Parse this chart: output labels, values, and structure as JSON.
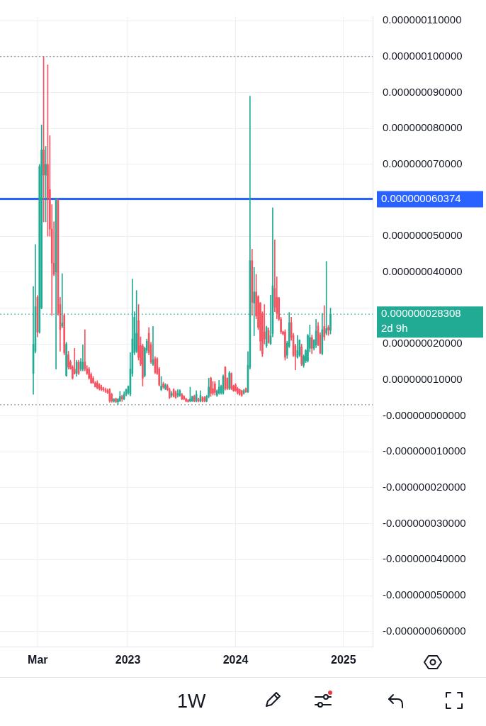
{
  "chart_data": {
    "type": "candlestick",
    "x": [
      "2022-02-14",
      "2022-02-21",
      "2022-02-28",
      "2022-03-07",
      "2022-03-14",
      "2022-03-21",
      "2022-03-28",
      "2022-04-04",
      "2022-04-11",
      "2022-04-18",
      "2022-04-25",
      "2022-05-02",
      "2022-05-09",
      "2022-05-16",
      "2022-05-23",
      "2022-05-30",
      "2022-06-06",
      "2022-06-13",
      "2022-06-20",
      "2022-06-27",
      "2022-07-04",
      "2022-07-11",
      "2022-07-18",
      "2022-07-25",
      "2022-08-01",
      "2022-08-08",
      "2022-08-15",
      "2022-08-22",
      "2022-08-29",
      "2022-09-05",
      "2022-09-12",
      "2022-09-19",
      "2022-09-26",
      "2022-10-03",
      "2022-10-10",
      "2022-10-17",
      "2022-10-24",
      "2022-10-31",
      "2022-11-07",
      "2022-11-14",
      "2022-11-21",
      "2022-11-28",
      "2022-12-05",
      "2022-12-12",
      "2022-12-19",
      "2022-12-26",
      "2023-01-02",
      "2023-01-09",
      "2023-01-16",
      "2023-01-23",
      "2023-01-30",
      "2023-02-06",
      "2023-02-13",
      "2023-02-20",
      "2023-02-27",
      "2023-03-06",
      "2023-03-13",
      "2023-03-20",
      "2023-03-27",
      "2023-04-03",
      "2023-04-10",
      "2023-04-17",
      "2023-04-24",
      "2023-05-01",
      "2023-05-08",
      "2023-05-15",
      "2023-05-22",
      "2023-05-29",
      "2023-06-05",
      "2023-06-12",
      "2023-06-19",
      "2023-06-26",
      "2023-07-03",
      "2023-07-10",
      "2023-07-17",
      "2023-07-24",
      "2023-07-31",
      "2023-08-07",
      "2023-08-14",
      "2023-08-21",
      "2023-08-28",
      "2023-09-04",
      "2023-09-11",
      "2023-09-18",
      "2023-09-25",
      "2023-10-02",
      "2023-10-09",
      "2023-10-16",
      "2023-10-23",
      "2023-10-30",
      "2023-11-06",
      "2023-11-13",
      "2023-11-20",
      "2023-11-27",
      "2023-12-04",
      "2023-12-11",
      "2023-12-18",
      "2023-12-25",
      "2024-01-01",
      "2024-01-08",
      "2024-01-15",
      "2024-01-22",
      "2024-01-29",
      "2024-02-05",
      "2024-02-12",
      "2024-02-19",
      "2024-02-26",
      "2024-03-04",
      "2024-03-11",
      "2024-03-18",
      "2024-03-25",
      "2024-04-01",
      "2024-04-08",
      "2024-04-15",
      "2024-04-22",
      "2024-04-29",
      "2024-05-06",
      "2024-05-13",
      "2024-05-20",
      "2024-05-27",
      "2024-06-03",
      "2024-06-10",
      "2024-06-17",
      "2024-06-24",
      "2024-07-01",
      "2024-07-08",
      "2024-07-15",
      "2024-07-22",
      "2024-07-29",
      "2024-08-05",
      "2024-08-12",
      "2024-08-19",
      "2024-08-26",
      "2024-09-02",
      "2024-09-09",
      "2024-09-16",
      "2024-09-23",
      "2024-09-30",
      "2024-10-07",
      "2024-10-14",
      "2024-10-21",
      "2024-10-28",
      "2024-11-04",
      "2024-11-11",
      "2024-11-18"
    ],
    "ohlc": [
      [
        1.18e-08,
        3.6e-08,
        6e-09,
        2e-08
      ],
      [
        1.8e-08,
        4.77e-08,
        1.75e-08,
        3.04e-08
      ],
      [
        3.3e-08,
        3.35e-08,
        2.2e-08,
        2.33e-08
      ],
      [
        2.33e-08,
        7e-08,
        2.3e-08,
        6.94e-08
      ],
      [
        3e-08,
        8.1e-08,
        2.98e-08,
        7.4e-08
      ],
      [
        7.4e-08,
        1e-07,
        5.4e-08,
        6.7e-08
      ],
      [
        6.7e-08,
        7.5e-08,
        5.4e-08,
        7e-08
      ],
      [
        7e-08,
        9.77e-08,
        5e-08,
        6.06e-08
      ],
      [
        6.3e-08,
        7.8e-08,
        5e-08,
        5.2e-08
      ],
      [
        5.2e-08,
        5.88e-08,
        2.8e-08,
        4.25e-08
      ],
      [
        4.25e-08,
        5.4e-08,
        3.9e-08,
        3.94e-08
      ],
      [
        4e-08,
        6.06e-08,
        1.3e-08,
        6.04e-08
      ],
      [
        6e-08,
        6.04e-08,
        2.8e-08,
        2.85e-08
      ],
      [
        3.1e-08,
        3.3e-08,
        1.8e-08,
        2.4e-08
      ],
      [
        2.5e-08,
        3.96e-08,
        2.45e-08,
        2.58e-08
      ],
      [
        2.8e-08,
        2.85e-08,
        1.7e-08,
        1.75e-08
      ],
      [
        1.12e-08,
        2.05e-08,
        1.1e-08,
        2e-08
      ],
      [
        1.7e-08,
        1.8e-08,
        1.3e-08,
        1.36e-08
      ],
      [
        1.5e-08,
        1.55e-08,
        1.3e-08,
        1.31e-08
      ],
      [
        1.36e-08,
        1.4e-08,
        1.02e-08,
        1.05e-08
      ],
      [
        1.3e-08,
        1.88e-08,
        1.16e-08,
        1.18e-08
      ],
      [
        1.18e-08,
        1.55e-08,
        1.1e-08,
        1.5e-08
      ],
      [
        1.5e-08,
        1.55e-08,
        1.15e-08,
        1.18e-08
      ],
      [
        1.3e-08,
        1.6e-08,
        1.25e-08,
        1.5e-08
      ],
      [
        1.3e-08,
        1.98e-08,
        1.25e-08,
        1.5e-08
      ],
      [
        1.5e-08,
        2.4e-08,
        1.25e-08,
        1.31e-08
      ],
      [
        1.31e-08,
        1.4e-08,
        1.15e-08,
        1.18e-08
      ],
      [
        1.3e-08,
        1.35e-08,
        1.02e-08,
        1.05e-08
      ],
      [
        1.15e-08,
        1.2e-08,
        9e-09,
        9.2e-09
      ],
      [
        1.05e-08,
        1.1e-08,
        9e-09,
        9.2e-09
      ],
      [
        9.2e-09,
        9.6e-09,
        8e-09,
        8.1e-09
      ],
      [
        9.2e-09,
        9.8e-09,
        7.5e-09,
        7.8e-09
      ],
      [
        8.6e-09,
        9e-09,
        7.2e-09,
        7.6e-09
      ],
      [
        8e-09,
        8.6e-09,
        7e-09,
        7.3e-09
      ],
      [
        7.6e-09,
        8e-09,
        6.8e-09,
        7.3e-09
      ],
      [
        7.3e-09,
        7.8e-09,
        6.5e-09,
        6.8e-09
      ],
      [
        7e-09,
        7.5e-09,
        6.2e-09,
        6.4e-09
      ],
      [
        7.3e-09,
        7.6e-09,
        3.8e-09,
        4.1e-09
      ],
      [
        6e-09,
        6.3e-09,
        3.8e-09,
        4.1e-09
      ],
      [
        4.1e-09,
        4.8e-09,
        3.8e-09,
        4.7e-09
      ],
      [
        4.7e-09,
        5e-09,
        3.7e-09,
        3.9e-09
      ],
      [
        3.9e-09,
        4.8e-09,
        3.1e-09,
        4.7e-09
      ],
      [
        4.1e-09,
        6.8e-09,
        4e-09,
        5.4e-09
      ],
      [
        5.4e-09,
        5.8e-09,
        4e-09,
        4.7e-09
      ],
      [
        4.7e-09,
        6.7e-09,
        4.5e-09,
        6e-09
      ],
      [
        6e-09,
        7.5e-09,
        5.5e-09,
        7.3e-09
      ],
      [
        6.5e-09,
        8.4e-09,
        6e-09,
        8.2e-09
      ],
      [
        6e-09,
        1.76e-08,
        5.5e-09,
        1.31e-08
      ],
      [
        1.18e-08,
        3.81e-08,
        1.1e-08,
        2.14e-08
      ],
      [
        1.76e-08,
        2.9e-08,
        1.7e-08,
        2.75e-08
      ],
      [
        1.8e-08,
        3.49e-08,
        1.76e-08,
        2.3e-08
      ],
      [
        2.65e-08,
        3.1e-08,
        1.55e-08,
        1.63e-08
      ],
      [
        1.95e-08,
        2.2e-08,
        1.4e-08,
        1.44e-08
      ],
      [
        1.95e-08,
        2e-08,
        8.3e-09,
        1.05e-08
      ],
      [
        1.12e-08,
        1.92e-08,
        1.08e-08,
        1.88e-08
      ],
      [
        1.82e-08,
        2.14e-08,
        1.75e-08,
        2.08e-08
      ],
      [
        2.3e-08,
        2.46e-08,
        1.7e-08,
        1.76e-08
      ],
      [
        1.98e-08,
        2.05e-08,
        1.46e-08,
        1.5e-08
      ],
      [
        1.44e-08,
        2.49e-08,
        1.4e-08,
        1.56e-08
      ],
      [
        1.59e-08,
        1.65e-08,
        1.18e-08,
        1.21e-08
      ],
      [
        1.59e-08,
        1.62e-08,
        1.15e-08,
        1.18e-08
      ],
      [
        1.31e-08,
        1.35e-08,
        8.3e-09,
        8.6e-09
      ],
      [
        7.3e-09,
        1.1e-08,
        7e-09,
        8.3e-09
      ],
      [
        8.9e-09,
        9.4e-09,
        7.6e-09,
        8e-09
      ],
      [
        7.6e-09,
        9e-09,
        7.3e-09,
        8.6e-09
      ],
      [
        8.3e-09,
        8.8e-09,
        7e-09,
        7.3e-09
      ],
      [
        7.3e-09,
        7.8e-09,
        4.8e-09,
        5.1e-09
      ],
      [
        5.7e-09,
        6.8e-09,
        5.2e-09,
        6.3e-09
      ],
      [
        7.3e-09,
        7.6e-09,
        5.2e-09,
        5.4e-09
      ],
      [
        6.7e-09,
        7e-09,
        4.8e-09,
        5.1e-09
      ],
      [
        5.7e-09,
        7.3e-09,
        5.2e-09,
        6.3e-09
      ],
      [
        5.7e-09,
        7.3e-09,
        5.4e-09,
        7e-09
      ],
      [
        6e-09,
        6.3e-09,
        4.5e-09,
        4.7e-09
      ],
      [
        5.4e-09,
        5.7e-09,
        4.5e-09,
        4.7e-09
      ],
      [
        4.7e-09,
        5e-09,
        3.9e-09,
        4.1e-09
      ],
      [
        4.4e-09,
        4.6e-09,
        3.8e-09,
        4e-09
      ],
      [
        4.1e-09,
        8e-09,
        3.9e-09,
        4.7e-09
      ],
      [
        4.1e-09,
        5.5e-09,
        4e-09,
        5.4e-09
      ],
      [
        5.4e-09,
        5.8e-09,
        3.9e-09,
        4.1e-09
      ],
      [
        4.1e-09,
        7e-09,
        3.9e-09,
        6e-09
      ],
      [
        4.7e-09,
        5e-09,
        3.9e-09,
        4.1e-09
      ],
      [
        4.1e-09,
        7e-09,
        3.9e-09,
        5.7e-09
      ],
      [
        5.1e-09,
        5.4e-09,
        3.9e-09,
        4.1e-09
      ],
      [
        5.1e-09,
        5.4e-09,
        3.9e-09,
        4.1e-09
      ],
      [
        4.1e-09,
        5.7e-09,
        3.9e-09,
        5.4e-09
      ],
      [
        5.4e-09,
        1.05e-08,
        5e-09,
        8e-09
      ],
      [
        1.05e-08,
        1.08e-08,
        5.4e-09,
        6.3e-09
      ],
      [
        7.6e-09,
        9.6e-09,
        5.8e-09,
        6.3e-09
      ],
      [
        8.9e-09,
        9.6e-09,
        5.8e-09,
        6.5e-09
      ],
      [
        5.7e-09,
        7.3e-09,
        5.4e-09,
        7e-09
      ],
      [
        6.3e-09,
        9.9e-09,
        6e-09,
        8e-09
      ],
      [
        6.5e-09,
        8.6e-09,
        6e-09,
        8.3e-09
      ],
      [
        6.3e-09,
        1.14e-08,
        6e-09,
        1.1e-08
      ],
      [
        1.36e-08,
        1.37e-08,
        7.2e-09,
        7.6e-09
      ],
      [
        1.05e-08,
        1.06e-08,
        7.3e-09,
        7.6e-09
      ],
      [
        7.6e-09,
        1.24e-08,
        7.3e-09,
        1.2e-08
      ],
      [
        1.18e-08,
        1.2e-08,
        7.3e-09,
        7.6e-09
      ],
      [
        8.3e-09,
        8.6e-09,
        6.8e-09,
        7e-09
      ],
      [
        8.6e-09,
        9e-09,
        6.8e-09,
        7e-09
      ],
      [
        7.6e-09,
        8e-09,
        6e-09,
        6.3e-09
      ],
      [
        7.3e-09,
        7.5e-09,
        5.7e-09,
        6e-09
      ],
      [
        7e-09,
        7.2e-09,
        5.4e-09,
        5.7e-09
      ],
      [
        6.3e-09,
        7.4e-09,
        6e-09,
        7e-09
      ],
      [
        7.6e-09,
        7.8e-09,
        6.5e-09,
        6.7e-09
      ],
      [
        6.7e-09,
        1.79e-08,
        6.5e-09,
        1.41e-08
      ],
      [
        1.35e-08,
        8.9e-08,
        1.3e-08,
        4.32e-08
      ],
      [
        4.32e-08,
        4.64e-08,
        2.8e-08,
        3.16e-08
      ],
      [
        3.14e-08,
        4.13e-08,
        2.23e-08,
        3.45e-08
      ],
      [
        3.45e-08,
        3.94e-08,
        2.7e-08,
        2.78e-08
      ],
      [
        3.32e-08,
        3.35e-08,
        2.4e-08,
        2.46e-08
      ],
      [
        3.14e-08,
        3.16e-08,
        1.82e-08,
        2.08e-08
      ],
      [
        2.85e-08,
        2.9e-08,
        1.65e-08,
        1.73e-08
      ],
      [
        2.34e-08,
        3.1e-08,
        2e-08,
        2.14e-08
      ],
      [
        1.95e-08,
        2.5e-08,
        1.9e-08,
        2.46e-08
      ],
      [
        2.38e-08,
        2.45e-08,
        2.02e-08,
        2.04e-08
      ],
      [
        2.01e-08,
        3.36e-08,
        1.98e-08,
        2.23e-08
      ],
      [
        2.29e-08,
        5.79e-08,
        2.2e-08,
        3.62e-08
      ],
      [
        3.55e-08,
        4.9e-08,
        2.9e-08,
        3.03e-08
      ],
      [
        3.3e-08,
        3.87e-08,
        2.7e-08,
        2.85e-08
      ],
      [
        3.29e-08,
        3.3e-08,
        2.65e-08,
        2.69e-08
      ],
      [
        2.69e-08,
        2.75e-08,
        2.29e-08,
        2.34e-08
      ],
      [
        2.34e-08,
        2.36e-08,
        2.25e-08,
        2.28e-08
      ],
      [
        2.34e-08,
        2.4e-08,
        1.55e-08,
        1.63e-08
      ],
      [
        1.69e-08,
        2.08e-08,
        1.6e-08,
        2.03e-08
      ],
      [
        1.94e-08,
        2.88e-08,
        1.9e-08,
        2.59e-08
      ],
      [
        2.6e-08,
        2.75e-08,
        2.1e-08,
        2.18e-08
      ],
      [
        2.24e-08,
        2.3e-08,
        1.65e-08,
        1.69e-08
      ],
      [
        1.95e-08,
        2e-08,
        1.28e-08,
        1.66e-08
      ],
      [
        1.63e-08,
        2.24e-08,
        1.6e-08,
        1.82e-08
      ],
      [
        1.69e-08,
        2.12e-08,
        1.65e-08,
        2.11e-08
      ],
      [
        1.92e-08,
        2e-08,
        1.4e-08,
        1.44e-08
      ],
      [
        1.41e-08,
        1.7e-08,
        1.35e-08,
        1.66e-08
      ],
      [
        1.53e-08,
        1.85e-08,
        1.48e-08,
        1.82e-08
      ],
      [
        1.53e-08,
        2.27e-08,
        1.5e-08,
        2.24e-08
      ],
      [
        1.88e-08,
        2.53e-08,
        1.78e-08,
        2.18e-08
      ],
      [
        2.18e-08,
        2.25e-08,
        1.73e-08,
        1.88e-08
      ],
      [
        1.88e-08,
        2.12e-08,
        1.83e-08,
        2.12e-08
      ],
      [
        1.97e-08,
        2.69e-08,
        1.9e-08,
        2.36e-08
      ],
      [
        2.5e-08,
        2.6e-08,
        1.95e-08,
        1.98e-08
      ],
      [
        2.26e-08,
        2.32e-08,
        1.73e-08,
        1.75e-08
      ],
      [
        1.73e-08,
        2.85e-08,
        1.7e-08,
        2.4e-08
      ],
      [
        2.49e-08,
        3.07e-08,
        2.1e-08,
        2.2e-08
      ],
      [
        2.3e-08,
        4.3e-08,
        2.25e-08,
        2.43e-08
      ],
      [
        2.46e-08,
        2.52e-08,
        2.24e-08,
        2.39e-08
      ],
      [
        2.38e-08,
        3e-08,
        2.28e-08,
        2.8308e-08
      ]
    ],
    "colors": [
      "#22ab94",
      "#22ab94",
      "#f7525f",
      "#22ab94",
      "#22ab94",
      "#f7525f",
      "#22ab94",
      "#f7525f",
      "#f7525f",
      "#f7525f",
      "#f7525f",
      "#22ab94",
      "#f7525f",
      "#f7525f",
      "#22ab94",
      "#f7525f",
      "#22ab94",
      "#f7525f",
      "#f7525f",
      "#f7525f",
      "#f7525f",
      "#22ab94",
      "#f7525f",
      "#22ab94",
      "#22ab94",
      "#f7525f",
      "#f7525f",
      "#f7525f",
      "#f7525f",
      "#f7525f",
      "#f7525f",
      "#f7525f",
      "#f7525f",
      "#f7525f",
      "#f7525f",
      "#f7525f",
      "#f7525f",
      "#f7525f",
      "#f7525f",
      "#22ab94",
      "#f7525f",
      "#22ab94",
      "#22ab94",
      "#f7525f",
      "#22ab94",
      "#22ab94",
      "#22ab94",
      "#22ab94",
      "#22ab94",
      "#22ab94",
      "#22ab94",
      "#f7525f",
      "#f7525f",
      "#f7525f",
      "#22ab94",
      "#22ab94",
      "#f7525f",
      "#f7525f",
      "#22ab94",
      "#f7525f",
      "#f7525f",
      "#f7525f",
      "#22ab94",
      "#f7525f",
      "#22ab94",
      "#f7525f",
      "#f7525f",
      "#22ab94",
      "#f7525f",
      "#f7525f",
      "#22ab94",
      "#22ab94",
      "#f7525f",
      "#f7525f",
      "#f7525f",
      "#f7525f",
      "#22ab94",
      "#22ab94",
      "#f7525f",
      "#22ab94",
      "#f7525f",
      "#22ab94",
      "#f7525f",
      "#f7525f",
      "#22ab94",
      "#22ab94",
      "#f7525f",
      "#f7525f",
      "#f7525f",
      "#22ab94",
      "#22ab94",
      "#22ab94",
      "#22ab94",
      "#f7525f",
      "#f7525f",
      "#22ab94",
      "#f7525f",
      "#f7525f",
      "#f7525f",
      "#f7525f",
      "#f7525f",
      "#f7525f",
      "#22ab94",
      "#f7525f",
      "#22ab94",
      "#22ab94",
      "#f7525f",
      "#22ab94",
      "#f7525f",
      "#f7525f",
      "#f7525f",
      "#f7525f",
      "#f7525f",
      "#22ab94",
      "#f7525f",
      "#22ab94",
      "#22ab94",
      "#f7525f",
      "#f7525f",
      "#f7525f",
      "#f7525f",
      "#f7525f",
      "#f7525f",
      "#22ab94",
      "#22ab94",
      "#f7525f",
      "#f7525f",
      "#f7525f",
      "#22ab94",
      "#22ab94",
      "#f7525f",
      "#22ab94",
      "#22ab94",
      "#22ab94",
      "#22ab94",
      "#f7525f",
      "#22ab94",
      "#22ab94",
      "#f7525f",
      "#f7525f",
      "#22ab94",
      "#f7525f",
      "#22ab94",
      "#f7525f",
      "#22ab94"
    ],
    "xlim": [
      "2021-10-24",
      "2025-04-10"
    ],
    "xticks": [
      {
        "value": "2022-03",
        "label": "Mar"
      },
      {
        "value": "2023",
        "label": "2023"
      },
      {
        "value": "2024",
        "label": "2024"
      },
      {
        "value": "2025",
        "label": "2025"
      }
    ],
    "ylim": [
      -6.42e-08,
      1.112e-07
    ],
    "yticks": [
      {
        "value": 1.1e-07,
        "label": "0.000000110000"
      },
      {
        "value": 1e-07,
        "label": "0.000000100000"
      },
      {
        "value": 9e-08,
        "label": "0.000000090000"
      },
      {
        "value": 8e-08,
        "label": "0.000000080000"
      },
      {
        "value": 7e-08,
        "label": "0.000000070000"
      },
      {
        "value": 6e-08,
        "label": null
      },
      {
        "value": 5e-08,
        "label": "0.000000050000"
      },
      {
        "value": 4e-08,
        "label": "0.000000040000"
      },
      {
        "value": 3e-08,
        "label": null
      },
      {
        "value": 2e-08,
        "label": "0.000000020000"
      },
      {
        "value": 1e-08,
        "label": "0.000000010000"
      },
      {
        "value": 0,
        "label": "-0.000000000000"
      },
      {
        "value": -1e-08,
        "label": "-0.000000010000"
      },
      {
        "value": -2e-08,
        "label": "-0.000000020000"
      },
      {
        "value": -3e-08,
        "label": "-0.000000030000"
      },
      {
        "value": -4e-08,
        "label": "-0.000000040000"
      },
      {
        "value": -5e-08,
        "label": "-0.000000050000"
      },
      {
        "value": -6e-08,
        "label": "-0.000000060000"
      }
    ],
    "ref_lines": [
      {
        "axis": "y",
        "value": 1e-07,
        "label": null,
        "color": "#787b86",
        "line_style": "dotted"
      },
      {
        "axis": "y",
        "value": 3.1e-09,
        "label": null,
        "color": "#787b86",
        "line_style": "dotted"
      },
      {
        "axis": "y",
        "value": 6.0374e-08,
        "label": "0.000000060374",
        "color": "#2962ff",
        "line_style": "solid"
      },
      {
        "axis": "y",
        "value": 2.8308e-08,
        "label": "0.000000028308\n2d 9h",
        "color": "#22ab94",
        "line_style": "dotted"
      }
    ],
    "annotations": [
      "1W"
    ],
    "grid": true,
    "legend": false
  }
}
